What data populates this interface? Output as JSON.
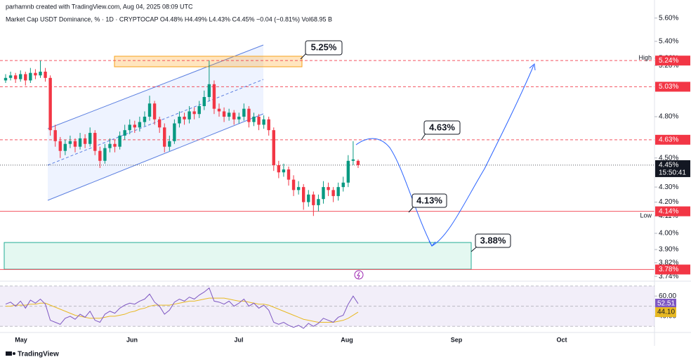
{
  "header": {
    "credit": "parhamnb created with TradingView.com, Aug 04, 2025 08:09 UTC",
    "legend": "Market Cap USDT Dominance, % · 1D · CRYPTOCAP  O4.48%  H4.49%  L4.43%  C4.45%  −0.04 (−0.81%)  Vol68.95 B"
  },
  "chart_data": {
    "type": "candlestick",
    "ohlc": [
      [
        5.08,
        5.13,
        5.06,
        5.1
      ],
      [
        5.1,
        5.15,
        5.08,
        5.12
      ],
      [
        5.12,
        5.14,
        5.06,
        5.09
      ],
      [
        5.09,
        5.16,
        5.07,
        5.13
      ],
      [
        5.13,
        5.15,
        5.04,
        5.08
      ],
      [
        5.08,
        5.18,
        5.06,
        5.14
      ],
      [
        5.14,
        5.17,
        5.09,
        5.12
      ],
      [
        5.12,
        5.24,
        5.1,
        5.15
      ],
      [
        5.15,
        5.18,
        5.07,
        5.1
      ],
      [
        5.1,
        5.12,
        4.66,
        4.7
      ],
      [
        4.7,
        4.74,
        4.58,
        4.62
      ],
      [
        4.62,
        4.65,
        4.5,
        4.55
      ],
      [
        4.55,
        4.63,
        4.52,
        4.6
      ],
      [
        4.6,
        4.66,
        4.57,
        4.62
      ],
      [
        4.62,
        4.64,
        4.54,
        4.58
      ],
      [
        4.58,
        4.68,
        4.56,
        4.64
      ],
      [
        4.64,
        4.67,
        4.57,
        4.6
      ],
      [
        4.6,
        4.72,
        4.58,
        4.68
      ],
      [
        4.68,
        4.7,
        4.52,
        4.55
      ],
      [
        4.55,
        4.58,
        4.43,
        4.48
      ],
      [
        4.48,
        4.6,
        4.46,
        4.57
      ],
      [
        4.57,
        4.64,
        4.54,
        4.6
      ],
      [
        4.6,
        4.63,
        4.54,
        4.58
      ],
      [
        4.58,
        4.69,
        4.56,
        4.66
      ],
      [
        4.66,
        4.74,
        4.63,
        4.7
      ],
      [
        4.7,
        4.78,
        4.67,
        4.74
      ],
      [
        4.74,
        4.77,
        4.68,
        4.72
      ],
      [
        4.72,
        4.8,
        4.69,
        4.76
      ],
      [
        4.76,
        4.84,
        4.73,
        4.8
      ],
      [
        4.8,
        4.96,
        4.77,
        4.9
      ],
      [
        4.9,
        4.92,
        4.74,
        4.78
      ],
      [
        4.78,
        4.8,
        4.68,
        4.72
      ],
      [
        4.72,
        4.75,
        4.54,
        4.58
      ],
      [
        4.58,
        4.66,
        4.55,
        4.62
      ],
      [
        4.62,
        4.78,
        4.6,
        4.75
      ],
      [
        4.75,
        4.84,
        4.72,
        4.8
      ],
      [
        4.8,
        4.83,
        4.74,
        4.78
      ],
      [
        4.78,
        4.88,
        4.75,
        4.84
      ],
      [
        4.84,
        4.87,
        4.78,
        4.82
      ],
      [
        4.82,
        4.92,
        4.79,
        4.88
      ],
      [
        4.88,
        5.0,
        4.85,
        4.95
      ],
      [
        4.95,
        5.24,
        4.92,
        5.05
      ],
      [
        5.05,
        5.08,
        4.82,
        4.86
      ],
      [
        4.86,
        4.9,
        4.8,
        4.84
      ],
      [
        4.84,
        4.87,
        4.76,
        4.8
      ],
      [
        4.8,
        4.86,
        4.77,
        4.83
      ],
      [
        4.83,
        4.85,
        4.74,
        4.78
      ],
      [
        4.78,
        4.83,
        4.75,
        4.8
      ],
      [
        4.8,
        4.9,
        4.77,
        4.86
      ],
      [
        4.86,
        4.88,
        4.72,
        4.76
      ],
      [
        4.76,
        4.83,
        4.73,
        4.8
      ],
      [
        4.8,
        4.82,
        4.7,
        4.74
      ],
      [
        4.74,
        4.81,
        4.71,
        4.78
      ],
      [
        4.78,
        4.8,
        4.66,
        4.7
      ],
      [
        4.7,
        4.72,
        4.41,
        4.45
      ],
      [
        4.45,
        4.48,
        4.36,
        4.4
      ],
      [
        4.4,
        4.46,
        4.37,
        4.42
      ],
      [
        4.42,
        4.44,
        4.31,
        4.35
      ],
      [
        4.35,
        4.38,
        4.24,
        4.28
      ],
      [
        4.28,
        4.34,
        4.25,
        4.3
      ],
      [
        4.3,
        4.32,
        4.15,
        4.2
      ],
      [
        4.2,
        4.28,
        4.17,
        4.25
      ],
      [
        4.25,
        4.27,
        4.11,
        4.18
      ],
      [
        4.18,
        4.25,
        4.14,
        4.22
      ],
      [
        4.22,
        4.34,
        4.19,
        4.3
      ],
      [
        4.3,
        4.33,
        4.24,
        4.28
      ],
      [
        4.28,
        4.3,
        4.2,
        4.24
      ],
      [
        4.24,
        4.33,
        4.21,
        4.3
      ],
      [
        4.3,
        4.37,
        4.27,
        4.33
      ],
      [
        4.33,
        4.52,
        4.3,
        4.48
      ],
      [
        4.48,
        4.62,
        4.45,
        4.49
      ],
      [
        4.48,
        4.49,
        4.43,
        4.45
      ]
    ],
    "up_color": "#089981",
    "down_color": "#f23645",
    "ylim": [
      3.72,
      5.71
    ],
    "log": true,
    "yticks": [
      {
        "value": 5.6,
        "label": "5.60%"
      },
      {
        "value": 5.4,
        "label": "5.40%"
      },
      {
        "value": 5.26,
        "label": "5.26%"
      },
      {
        "value": 5.2,
        "label": "5.20%"
      },
      {
        "value": 4.8,
        "label": "4.80%"
      },
      {
        "value": 4.5,
        "label": "4.50%"
      },
      {
        "value": 4.3,
        "label": "4.30%"
      },
      {
        "value": 4.2,
        "label": "4.20%"
      },
      {
        "value": 4.11,
        "label": "4.11%"
      },
      {
        "value": 4.0,
        "label": "4.00%"
      },
      {
        "value": 3.9,
        "label": "3.90%"
      },
      {
        "value": 3.82,
        "label": "3.82%"
      },
      {
        "value": 3.74,
        "label": "3.74%"
      }
    ],
    "high_label": "High",
    "low_label": "Low",
    "price_tags": [
      {
        "value": 5.24,
        "label": "5.24%",
        "color": "#f23645",
        "style": "dashed"
      },
      {
        "value": 5.03,
        "label": "5.03%",
        "color": "#f23645",
        "style": "dashed"
      },
      {
        "value": 4.63,
        "label": "4.63%",
        "color": "#f23645",
        "style": "dashed"
      },
      {
        "value": 4.45,
        "label": "4.45%",
        "color": "#131722",
        "style": "dotted"
      },
      {
        "value": 4.14,
        "label": "4.14%",
        "color": "#f23645",
        "style": "solid"
      },
      {
        "value": 3.78,
        "label": "3.78%",
        "color": "#f23645",
        "style": "solid"
      }
    ],
    "countdown": "15:50:41",
    "months": [
      "May",
      "Jun",
      "Jul",
      "Aug",
      "Sep",
      "Oct"
    ],
    "annotations": [
      "5.25%",
      "4.63%",
      "4.13%",
      "3.88%"
    ],
    "rsi": {
      "color": "#7e57c2",
      "ma_color": "#e8b923",
      "ylim": [
        26,
        72
      ],
      "bands": [
        30,
        50,
        70
      ],
      "yticks": [
        {
          "value": 60,
          "label": "60.00"
        },
        {
          "value": 40,
          "label": "40.00"
        }
      ],
      "values": [
        52,
        54,
        50,
        55,
        48,
        56,
        53,
        57,
        52,
        36,
        34,
        32,
        38,
        40,
        37,
        42,
        39,
        45,
        36,
        34,
        42,
        45,
        43,
        48,
        51,
        53,
        52,
        55,
        57,
        62,
        54,
        50,
        42,
        46,
        54,
        57,
        55,
        59,
        57,
        61,
        64,
        68,
        55,
        54,
        52,
        55,
        50,
        53,
        57,
        50,
        53,
        48,
        51,
        46,
        34,
        32,
        34,
        31,
        29,
        31,
        28,
        33,
        30,
        33,
        38,
        36,
        34,
        39,
        41,
        52,
        60,
        52.51
      ],
      "ma_values": [
        50,
        50,
        51,
        51,
        51,
        52,
        52,
        53,
        53,
        51,
        49,
        47,
        45,
        43,
        41,
        40,
        39,
        38,
        38,
        38,
        39,
        40,
        40,
        41,
        42,
        44,
        45,
        47,
        48,
        50,
        51,
        51,
        51,
        51,
        52,
        53,
        54,
        55,
        55,
        56,
        57,
        58,
        58,
        58,
        58,
        57,
        56,
        55,
        55,
        54,
        53,
        52,
        52,
        51,
        49,
        47,
        45,
        43,
        41,
        39,
        37,
        36,
        35,
        34,
        34,
        34,
        34,
        35,
        36,
        38,
        41,
        44.1
      ],
      "ma_last_label": "44.10"
    }
  },
  "footer": {
    "brand": "TradingView"
  }
}
